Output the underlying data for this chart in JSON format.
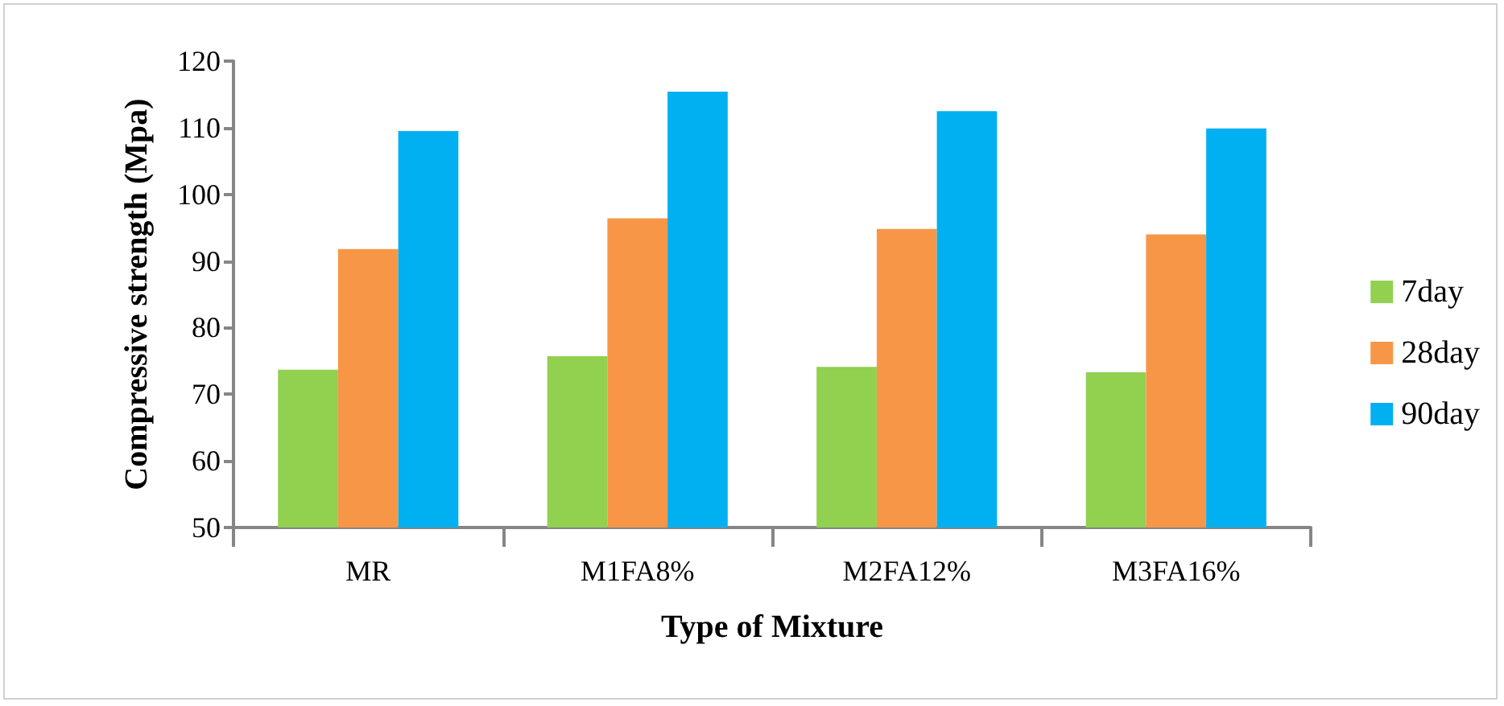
{
  "chart_data": {
    "type": "bar",
    "xlabel": "Type of Mixture",
    "ylabel": "Compressive strength (Mpa)",
    "categories": [
      "MR",
      "M1FA8%",
      "M2FA12%",
      "M3FA16%"
    ],
    "series": [
      {
        "name": "7day",
        "color": "#92d050",
        "values": [
          73.7,
          75.7,
          74.1,
          73.3
        ]
      },
      {
        "name": "28day",
        "color": "#f79646",
        "values": [
          91.8,
          96.4,
          94.8,
          94.0
        ]
      },
      {
        "name": "90day",
        "color": "#00b0f0",
        "values": [
          109.5,
          115.4,
          112.5,
          109.9
        ]
      }
    ],
    "ylim": [
      50,
      120
    ],
    "yticks": [
      50,
      60,
      70,
      80,
      90,
      100,
      110,
      120
    ],
    "grid": false,
    "legend": "right"
  }
}
